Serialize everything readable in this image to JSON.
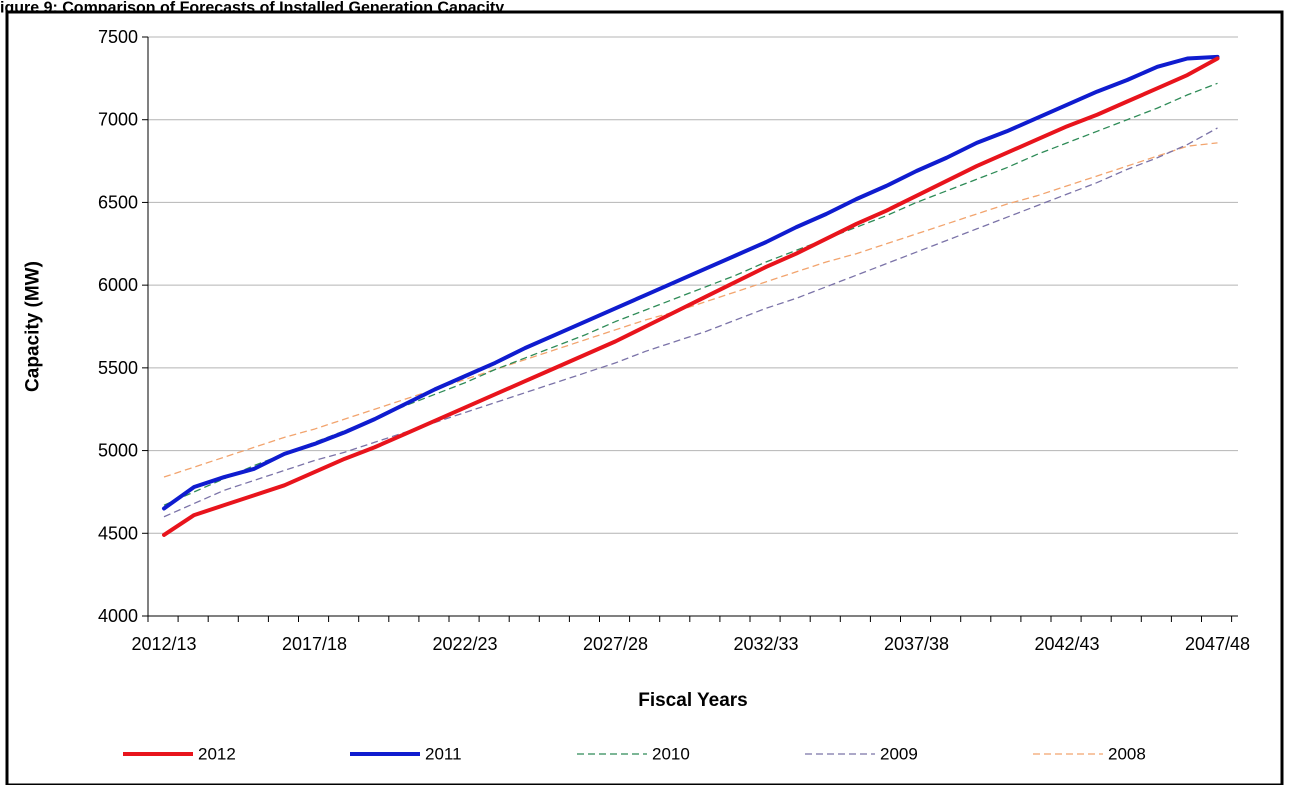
{
  "header_text": "igure 9: Comparison of Forecasts of Installed Generation Capacity",
  "chart_data": {
    "type": "line",
    "title": "",
    "xlabel": "Fiscal Years",
    "ylabel": "Capacity (MW)",
    "ylim": [
      4000,
      7500
    ],
    "yticks": [
      4000,
      4500,
      5000,
      5500,
      6000,
      6500,
      7000,
      7500
    ],
    "grid": "horizontal",
    "legend_position": "bottom",
    "x_tick_labels": [
      "2012/13",
      "2017/18",
      "2022/23",
      "2027/28",
      "2032/33",
      "2037/38",
      "2042/43",
      "2047/48"
    ],
    "categories": [
      "2012/13",
      "2013/14",
      "2014/15",
      "2015/16",
      "2016/17",
      "2017/18",
      "2018/19",
      "2019/20",
      "2020/21",
      "2021/22",
      "2022/23",
      "2023/24",
      "2024/25",
      "2025/26",
      "2026/27",
      "2027/28",
      "2028/29",
      "2029/30",
      "2030/31",
      "2031/32",
      "2032/33",
      "2033/34",
      "2034/35",
      "2035/36",
      "2036/37",
      "2037/38",
      "2038/39",
      "2039/40",
      "2040/41",
      "2041/42",
      "2042/43",
      "2043/44",
      "2044/45",
      "2045/46",
      "2046/47",
      "2047/48"
    ],
    "series": [
      {
        "name": "2012",
        "color": "#e8141c",
        "style": "solid",
        "values": [
          4490,
          4610,
          4670,
          4730,
          4790,
          4870,
          4950,
          5020,
          5100,
          5180,
          5260,
          5340,
          5420,
          5500,
          5580,
          5660,
          5750,
          5840,
          5930,
          6020,
          6110,
          6190,
          6280,
          6370,
          6450,
          6540,
          6630,
          6720,
          6800,
          6880,
          6960,
          7030,
          7110,
          7190,
          7270,
          7370
        ]
      },
      {
        "name": "2011",
        "color": "#0f1ccf",
        "style": "solid",
        "values": [
          4650,
          4780,
          4840,
          4890,
          4980,
          5040,
          5110,
          5190,
          5280,
          5370,
          5450,
          5530,
          5620,
          5700,
          5780,
          5860,
          5940,
          6020,
          6100,
          6180,
          6260,
          6350,
          6430,
          6520,
          6600,
          6690,
          6770,
          6860,
          6930,
          7010,
          7090,
          7170,
          7240,
          7320,
          7370,
          7380
        ]
      },
      {
        "name": "2010",
        "color": "#2e8b57",
        "style": "dashed",
        "values": [
          4670,
          4750,
          4830,
          4910,
          4980,
          5050,
          5120,
          5190,
          5270,
          5340,
          5410,
          5490,
          5560,
          5630,
          5700,
          5780,
          5850,
          5920,
          5990,
          6060,
          6140,
          6210,
          6280,
          6350,
          6420,
          6500,
          6570,
          6640,
          6710,
          6790,
          6860,
          6930,
          7000,
          7070,
          7150,
          7220
        ]
      },
      {
        "name": "2009",
        "color": "#7b73a8",
        "style": "dashed",
        "values": [
          4600,
          4680,
          4760,
          4820,
          4880,
          4940,
          4990,
          5050,
          5110,
          5170,
          5230,
          5290,
          5350,
          5410,
          5470,
          5530,
          5600,
          5660,
          5720,
          5790,
          5860,
          5920,
          5990,
          6060,
          6130,
          6200,
          6270,
          6340,
          6410,
          6480,
          6550,
          6620,
          6700,
          6770,
          6850,
          6950
        ]
      },
      {
        "name": "2008",
        "color": "#f2a46e",
        "style": "dashed",
        "values": [
          4840,
          4900,
          4960,
          5020,
          5080,
          5130,
          5190,
          5250,
          5310,
          5370,
          5430,
          5490,
          5550,
          5610,
          5670,
          5730,
          5790,
          5840,
          5900,
          5960,
          6020,
          6080,
          6140,
          6190,
          6250,
          6310,
          6370,
          6430,
          6490,
          6540,
          6600,
          6660,
          6720,
          6780,
          6840,
          6860
        ]
      }
    ]
  }
}
